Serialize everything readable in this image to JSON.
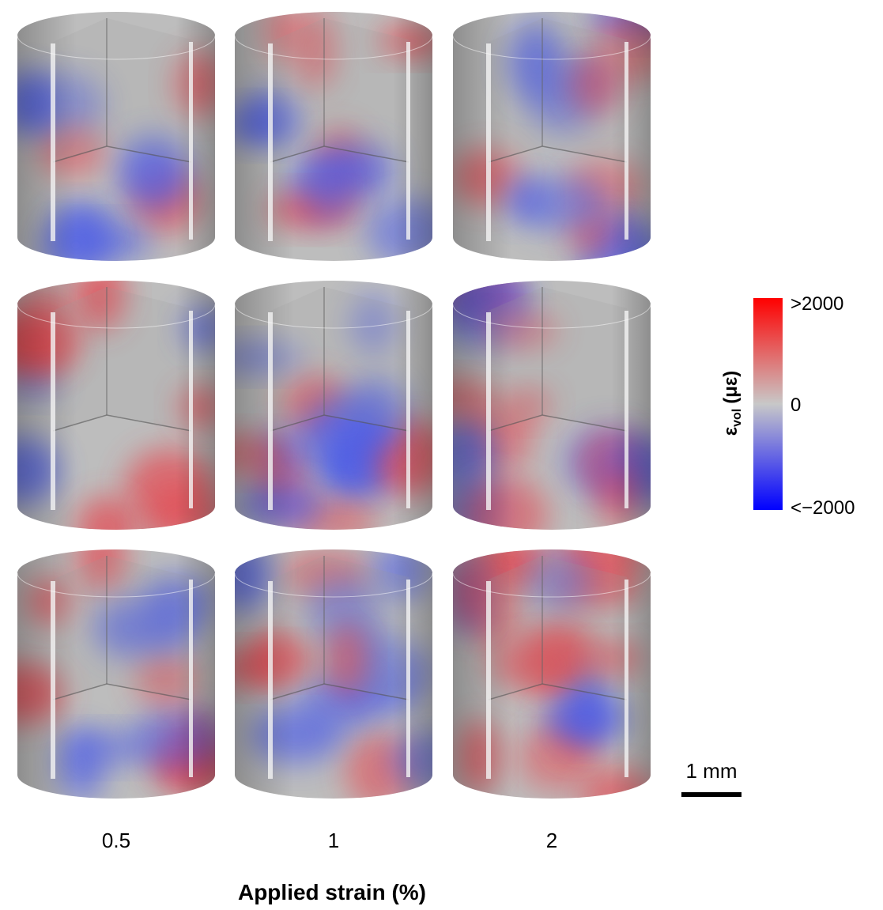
{
  "panels": {
    "column_labels": [
      "0.5",
      "1",
      "2"
    ],
    "axis_title": "Applied strain (%)"
  },
  "colorbar": {
    "title_symbol": "ε",
    "title_subscript": "vol",
    "title_unit": "(με)",
    "labels": [
      ">2000",
      "0",
      "<−2000"
    ]
  },
  "scale_bar": {
    "label": "1 mm"
  }
}
